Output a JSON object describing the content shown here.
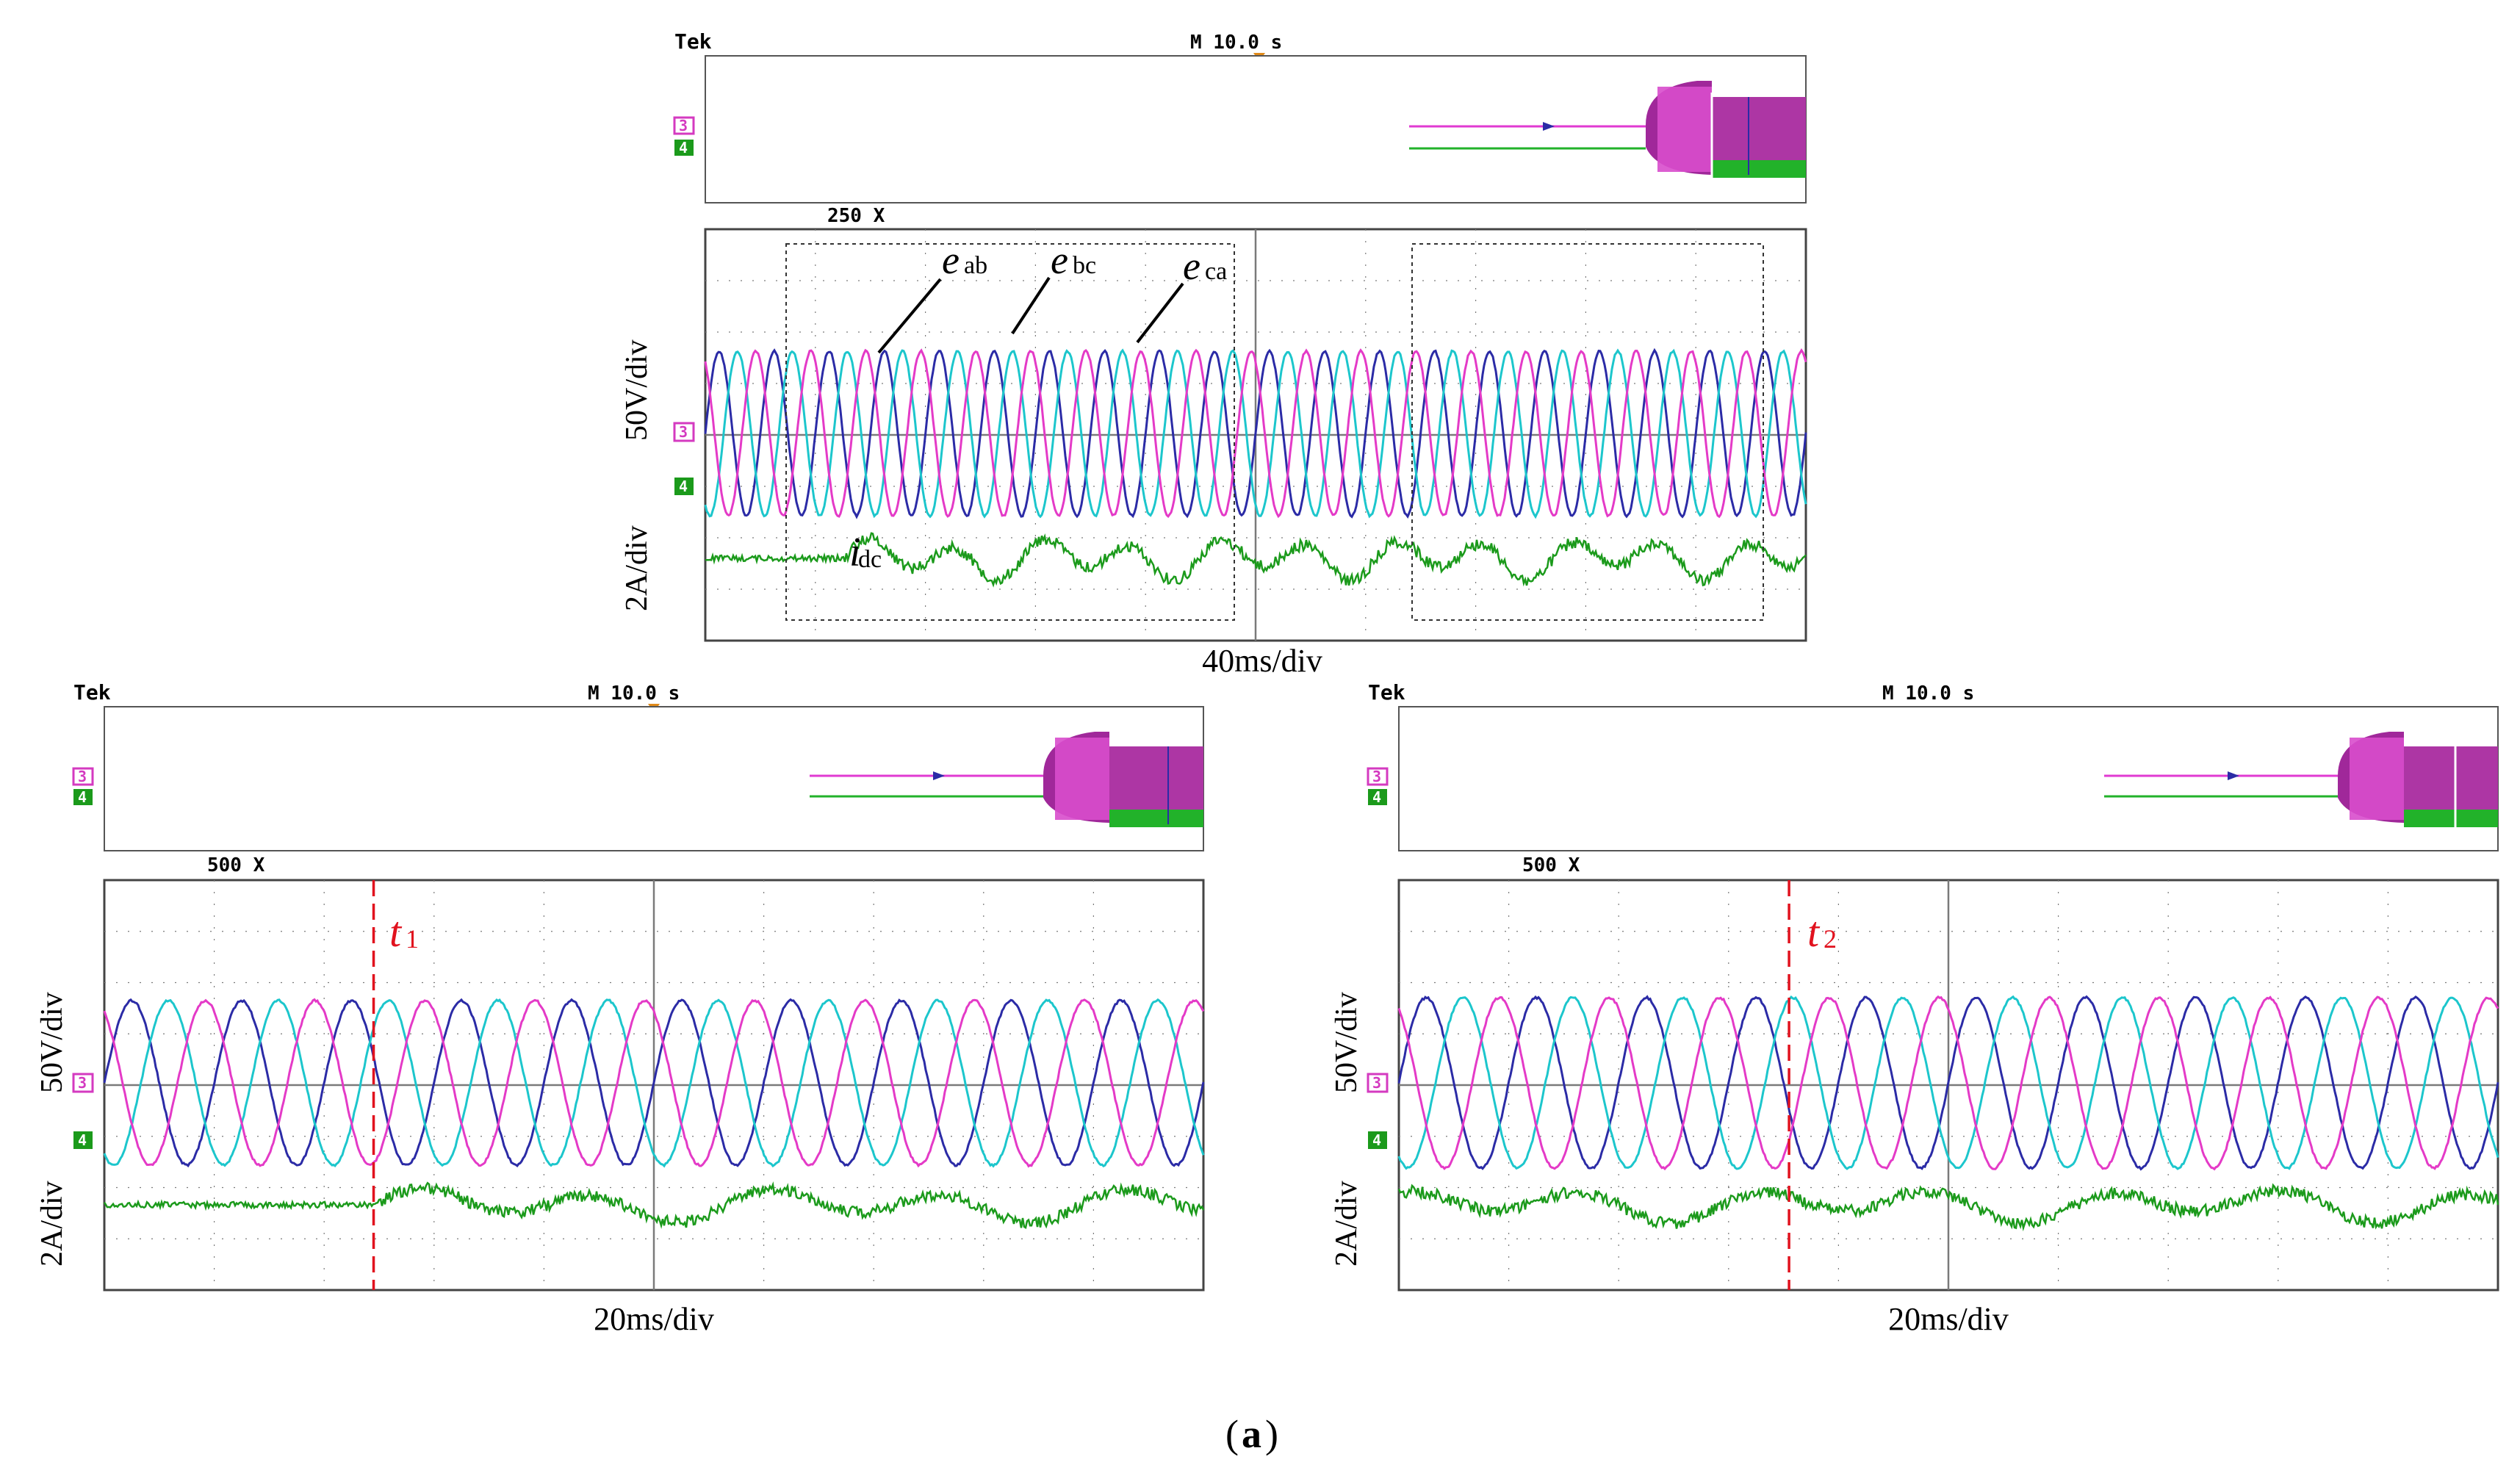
{
  "figure_label": "a",
  "colors": {
    "eab": "#2b2ba6",
    "ebc": "#1cc6cc",
    "eca": "#e43ac7",
    "idc": "#1b9a1b",
    "grid": "#7a7a7a",
    "marker": "#e1121e",
    "overview_bar": "#cc44b8"
  },
  "chart_data": [
    {
      "id": "top",
      "type": "line",
      "title": "Tek",
      "timebase_label": "M 10.0 s",
      "zoom_label": "250 X",
      "xlabel": "40ms/div",
      "ylabel_voltage": "50V/div",
      "ylabel_current": "2A/div",
      "channel_markers": [
        "3",
        "4"
      ],
      "x_divisions": 10,
      "y_divisions": 8,
      "xlim_ms": [
        0,
        400
      ],
      "voltage_amplitude_V": 100,
      "electrical_period_ms": 20,
      "series": [
        {
          "name": "e",
          "subscript": "ab",
          "kind": "voltage",
          "color": "#2b2ba6"
        },
        {
          "name": "e",
          "subscript": "bc",
          "kind": "voltage",
          "color": "#1cc6cc"
        },
        {
          "name": "e",
          "subscript": "ca",
          "kind": "voltage",
          "color": "#e43ac7"
        },
        {
          "name": "i",
          "subscript": "dc",
          "kind": "current",
          "color": "#1b9a1b"
        }
      ],
      "annotations": [
        "e_ab",
        "e_bc",
        "e_ca",
        "i_dc",
        "dashed boxes around t1 and t2 windows"
      ]
    },
    {
      "id": "bottom-left",
      "type": "line",
      "title": "Tek",
      "timebase_label": "M 10.0 s",
      "zoom_label": "500 X",
      "xlabel": "20ms/div",
      "ylabel_voltage": "50V/div",
      "ylabel_current": "2A/div",
      "channel_markers": [
        "3",
        "4"
      ],
      "x_divisions": 10,
      "y_divisions": 8,
      "xlim_ms": [
        0,
        200
      ],
      "event": {
        "label": "t",
        "subscript": "1",
        "time_ms": 49
      },
      "voltage_amplitude_V": 100,
      "electrical_period_ms": 20
    },
    {
      "id": "bottom-right",
      "type": "line",
      "title": "Tek",
      "timebase_label": "M 10.0 s",
      "zoom_label": "500 X",
      "xlabel": "20ms/div",
      "ylabel_voltage": "50V/div",
      "ylabel_current": "2A/div",
      "channel_markers": [
        "3",
        "4"
      ],
      "x_divisions": 10,
      "y_divisions": 8,
      "xlim_ms": [
        0,
        200
      ],
      "event": {
        "label": "t",
        "subscript": "2",
        "time_ms": 71
      },
      "voltage_amplitude_V": 100,
      "electrical_period_ms": 20
    }
  ]
}
